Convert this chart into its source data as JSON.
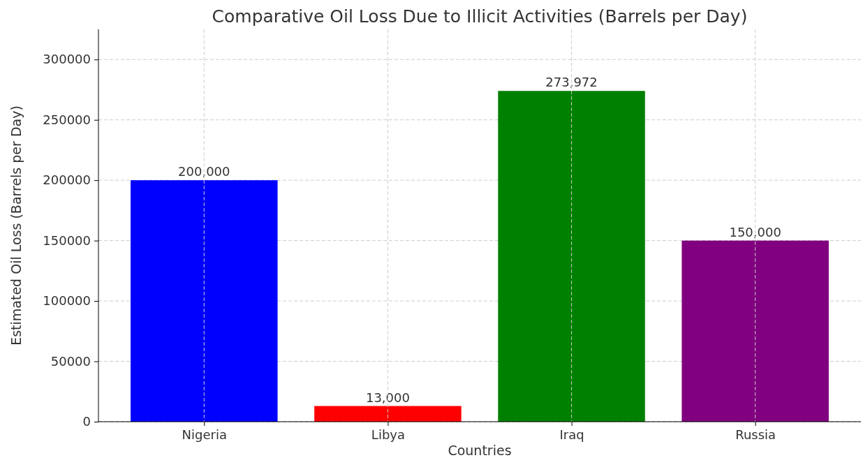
{
  "chart_data": {
    "type": "bar",
    "title": "Comparative Oil Loss Due to Illicit Activities (Barrels per Day)",
    "xlabel": "Countries",
    "ylabel": "Estimated Oil Loss (Barrels per Day)",
    "categories": [
      "Nigeria",
      "Libya",
      "Iraq",
      "Russia"
    ],
    "values": [
      200000,
      13000,
      273972,
      150000
    ],
    "colors": [
      "#0000ff",
      "#ff0000",
      "#008000",
      "#800080"
    ],
    "value_labels": [
      "200,000",
      "13,000",
      "273,972",
      "150,000"
    ],
    "ylim": [
      0,
      325000
    ],
    "yticks": [
      0,
      50000,
      100000,
      150000,
      200000,
      250000,
      300000
    ],
    "grid": true
  }
}
